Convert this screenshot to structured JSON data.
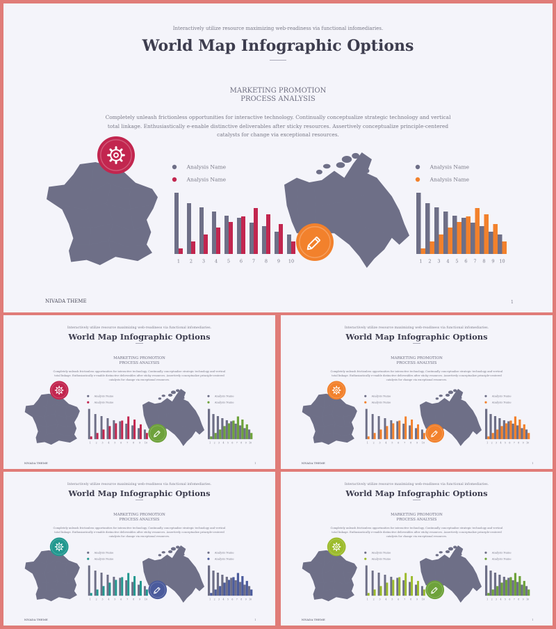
{
  "subtitle": "Interactively utilize resource maximizing web-readiness via functional infomediaries.",
  "title": "World Map Infographic Options",
  "section_heading": "MARKETING PROMOTION PROCESS ANALYSIS",
  "paragraph": "Completely unleash frictionless opportunities for interactive technology. Continually conceptualize strategic technology and vertical total linkage. Enthusiastically e-enable distinctive deliverables after sticky resources. Assertively conceptualize principle-centered catalysts for change via exceptional resources.",
  "footer_brand": "NIVADA THEME",
  "page_number": "1",
  "legend": [
    "Analysis Name",
    "Analysis Name"
  ],
  "icons": {
    "left": "gear-icon",
    "right": "pencil-icon"
  },
  "colors": {
    "grey": "#6e6f87",
    "red": "#c2264f",
    "orange": "#f2812c",
    "green": "#6ea23b",
    "teal": "#22988f",
    "navy": "#4b5b9c",
    "lime": "#9cbb2c"
  },
  "variants": [
    {
      "left_accent": "#c2264f",
      "right_accent": "#f2812c"
    },
    {
      "left_accent": "#c2264f",
      "right_accent": "#6ea23b"
    },
    {
      "left_accent": "#f2812c",
      "right_accent": "#f2812c"
    },
    {
      "left_accent": "#22988f",
      "right_accent": "#4b5b9c"
    },
    {
      "left_accent": "#9cbb2c",
      "right_accent": "#6ea23b"
    }
  ],
  "chart_data": [
    {
      "type": "bar",
      "categories": [
        "1",
        "2",
        "3",
        "4",
        "5",
        "6",
        "7",
        "8",
        "9",
        "10"
      ],
      "series": [
        {
          "values": [
            88,
            73,
            67,
            61,
            55,
            52,
            45,
            40,
            32,
            28
          ]
        },
        {
          "values": [
            8,
            18,
            28,
            38,
            46,
            54,
            66,
            57,
            43,
            18
          ]
        }
      ]
    },
    {
      "type": "bar",
      "categories": [
        "1",
        "2",
        "3",
        "4",
        "5",
        "6",
        "7",
        "8",
        "9",
        "10"
      ],
      "series": [
        {
          "values": [
            88,
            73,
            67,
            61,
            55,
            52,
            45,
            40,
            32,
            28
          ]
        },
        {
          "values": [
            8,
            18,
            28,
            38,
            46,
            54,
            66,
            57,
            43,
            18
          ]
        }
      ]
    }
  ]
}
